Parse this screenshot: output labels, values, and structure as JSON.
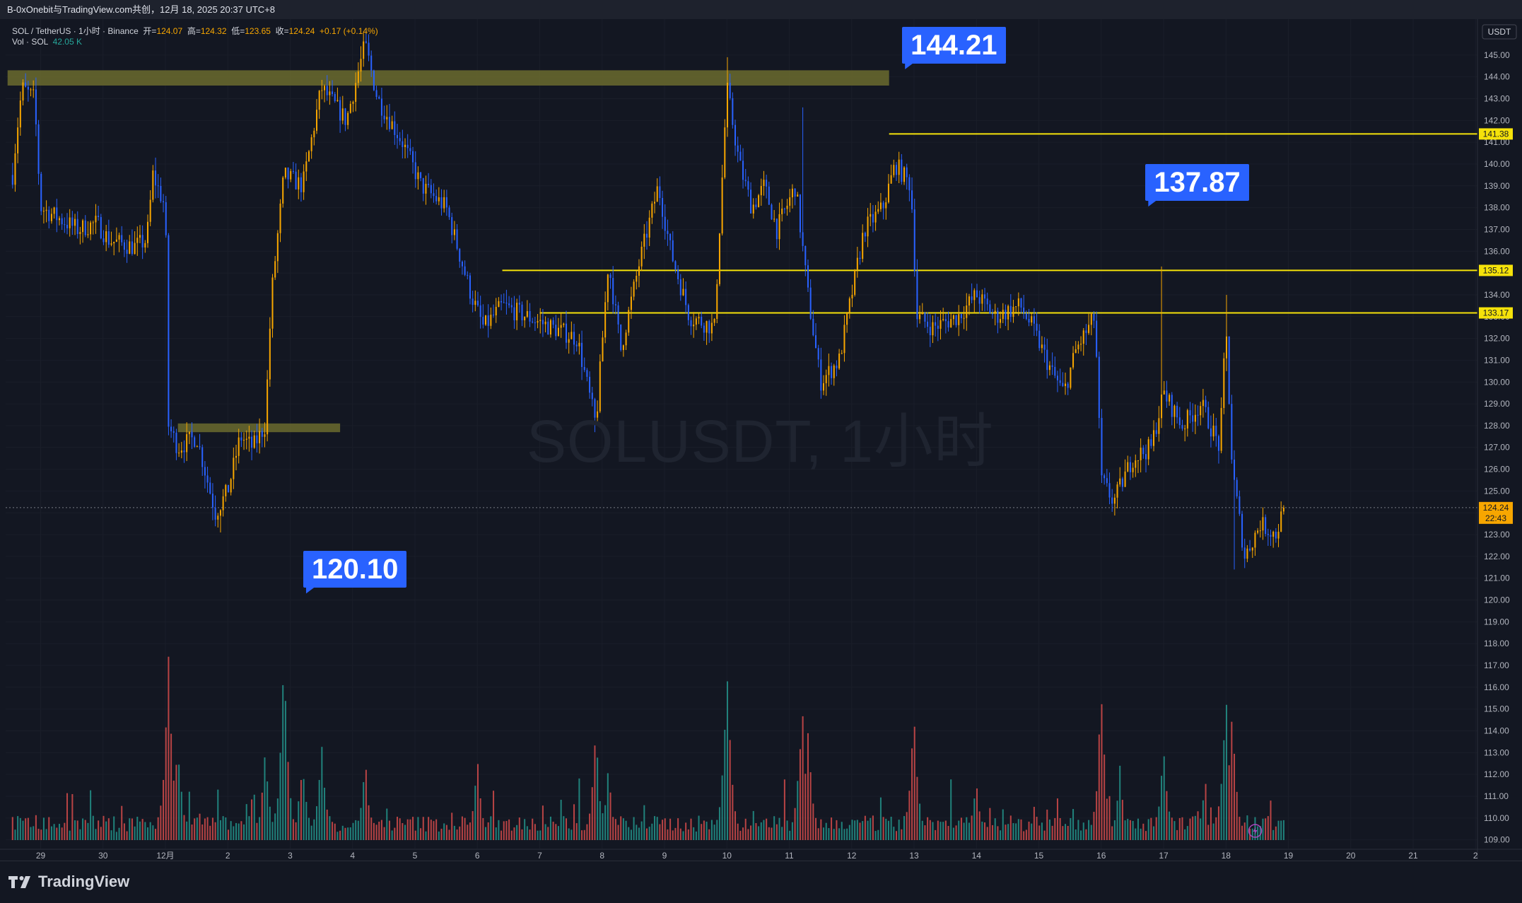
{
  "header": {
    "text": "B-0xOnebit与TradingView.com共创，12月 18, 2025 20:37 UTC+8"
  },
  "legend": {
    "symbol": "SOL / TetherUS · 1小时 · Binance",
    "open_label": "开=",
    "open": "124.07",
    "high_label": "高=",
    "high": "124.32",
    "low_label": "低=",
    "low": "123.65",
    "close_label": "收=",
    "close": "124.24",
    "change": "+0.17 (+0.14%)",
    "vol_label": "Vol · SOL",
    "vol": "42.05 K"
  },
  "watermark": "SOLUSDT, 1小时",
  "footer": {
    "brand": "TradingView"
  },
  "colors": {
    "background": "#131722",
    "up": "#f7a600",
    "down": "#2962ff",
    "vol_up": "#26a69a",
    "vol_down": "#ef5350",
    "level": "#f5e20a",
    "zone": "#6b6b2e"
  },
  "chart_data": {
    "type": "candlestick",
    "currency_label": "USDT",
    "ylim": [
      108.6,
      146.0
    ],
    "yticks": [
      109,
      110,
      111,
      112,
      113,
      114,
      115,
      116,
      117,
      118,
      119,
      120,
      121,
      122,
      123,
      124,
      125,
      126,
      127,
      128,
      129,
      130,
      131,
      132,
      133,
      134,
      135,
      136,
      137,
      138,
      139,
      140,
      141,
      142,
      143,
      144,
      145
    ],
    "xticks": [
      {
        "label": "29",
        "day": 0
      },
      {
        "label": "30",
        "day": 1
      },
      {
        "label": "12月",
        "day": 2
      },
      {
        "label": "2",
        "day": 3
      },
      {
        "label": "3",
        "day": 4
      },
      {
        "label": "4",
        "day": 5
      },
      {
        "label": "5",
        "day": 6
      },
      {
        "label": "6",
        "day": 7
      },
      {
        "label": "7",
        "day": 8
      },
      {
        "label": "8",
        "day": 9
      },
      {
        "label": "9",
        "day": 10
      },
      {
        "label": "10",
        "day": 11
      },
      {
        "label": "11",
        "day": 12
      },
      {
        "label": "12",
        "day": 13
      },
      {
        "label": "13",
        "day": 14
      },
      {
        "label": "14",
        "day": 15
      },
      {
        "label": "15",
        "day": 16
      },
      {
        "label": "16",
        "day": 17
      },
      {
        "label": "17",
        "day": 18
      },
      {
        "label": "18",
        "day": 19
      },
      {
        "label": "19",
        "day": 20
      },
      {
        "label": "20",
        "day": 21
      },
      {
        "label": "21",
        "day": 22
      },
      {
        "label": "2",
        "day": 23
      }
    ],
    "price_path": [
      [
        -0.45,
        139.5
      ],
      [
        -0.4,
        141
      ],
      [
        -0.3,
        143.5
      ],
      [
        -0.1,
        143
      ],
      [
        0,
        138
      ],
      [
        0.3,
        137.5
      ],
      [
        0.6,
        137
      ],
      [
        0.9,
        137.3
      ],
      [
        1.1,
        136.5
      ],
      [
        1.5,
        136.2
      ],
      [
        1.7,
        136.5
      ],
      [
        1.8,
        139.5
      ],
      [
        2.0,
        138
      ],
      [
        2.05,
        128
      ],
      [
        2.2,
        127
      ],
      [
        2.5,
        127.5
      ],
      [
        2.8,
        124
      ],
      [
        3.0,
        125
      ],
      [
        3.2,
        127.5
      ],
      [
        3.4,
        127
      ],
      [
        3.6,
        128
      ],
      [
        3.7,
        134
      ],
      [
        3.9,
        139.5
      ],
      [
        4.2,
        139
      ],
      [
        4.5,
        143.5
      ],
      [
        4.9,
        142
      ],
      [
        5.2,
        145.5
      ],
      [
        5.4,
        143
      ],
      [
        5.8,
        141
      ],
      [
        6.1,
        139
      ],
      [
        6.5,
        138
      ],
      [
        6.9,
        134
      ],
      [
        7.1,
        132.5
      ],
      [
        7.4,
        133.5
      ],
      [
        7.8,
        133
      ],
      [
        8.2,
        132.5
      ],
      [
        8.6,
        132
      ],
      [
        8.9,
        128
      ],
      [
        9.1,
        135.5
      ],
      [
        9.3,
        131.5
      ],
      [
        9.6,
        135.5
      ],
      [
        9.9,
        139
      ],
      [
        10.1,
        136
      ],
      [
        10.4,
        133
      ],
      [
        10.8,
        132.5
      ],
      [
        11.0,
        143.5
      ],
      [
        11.2,
        140
      ],
      [
        11.4,
        138
      ],
      [
        11.6,
        139
      ],
      [
        11.8,
        137
      ],
      [
        12.1,
        139
      ],
      [
        12.3,
        134
      ],
      [
        12.5,
        130
      ],
      [
        12.8,
        131
      ],
      [
        13.0,
        134
      ],
      [
        13.2,
        137
      ],
      [
        13.5,
        138
      ],
      [
        13.7,
        140
      ],
      [
        13.95,
        139
      ],
      [
        14.05,
        133
      ],
      [
        14.3,
        132.5
      ],
      [
        14.7,
        133
      ],
      [
        15.0,
        134
      ],
      [
        15.3,
        133
      ],
      [
        15.7,
        133.5
      ],
      [
        15.9,
        132.5
      ],
      [
        16.2,
        130.5
      ],
      [
        16.4,
        129.5
      ],
      [
        16.6,
        131.5
      ],
      [
        16.9,
        133
      ],
      [
        17.0,
        125.5
      ],
      [
        17.2,
        124.5
      ],
      [
        17.5,
        126.5
      ],
      [
        17.8,
        127
      ],
      [
        18.0,
        129.5
      ],
      [
        18.3,
        128
      ],
      [
        18.6,
        129
      ],
      [
        18.9,
        127
      ],
      [
        19.0,
        132.5
      ],
      [
        19.1,
        126
      ],
      [
        19.3,
        122
      ],
      [
        19.55,
        123.5
      ],
      [
        19.8,
        123
      ],
      [
        19.93,
        124.24
      ]
    ],
    "wicks": [
      {
        "day": 5.2,
        "high": 146.2
      },
      {
        "day": 11.0,
        "high": 144.9
      },
      {
        "day": 19.0,
        "high": 134.0
      },
      {
        "day": 19.12,
        "low": 121.4
      },
      {
        "day": 2.9,
        "low": 123.1
      },
      {
        "day": 17.95,
        "high": 135.3
      },
      {
        "day": 8.9,
        "low": 127.7
      },
      {
        "day": 12.2,
        "high": 142.6
      }
    ],
    "volume_spikes": [
      {
        "day": 2.05,
        "v": 1.0
      },
      {
        "day": 2.2,
        "v": 0.55
      },
      {
        "day": 3.6,
        "v": 0.48
      },
      {
        "day": 3.9,
        "v": 1.0
      },
      {
        "day": 4.2,
        "v": 0.45
      },
      {
        "day": 4.5,
        "v": 0.55
      },
      {
        "day": 5.2,
        "v": 0.45
      },
      {
        "day": 7.0,
        "v": 0.45
      },
      {
        "day": 8.9,
        "v": 0.6
      },
      {
        "day": 9.1,
        "v": 0.38
      },
      {
        "day": 11.0,
        "v": 1.0
      },
      {
        "day": 12.2,
        "v": 0.78
      },
      {
        "day": 12.3,
        "v": 0.62
      },
      {
        "day": 14.0,
        "v": 0.72
      },
      {
        "day": 15.0,
        "v": 0.34
      },
      {
        "day": 16.3,
        "v": 0.22
      },
      {
        "day": 17.0,
        "v": 0.84
      },
      {
        "day": 17.3,
        "v": 0.38
      },
      {
        "day": 18.0,
        "v": 0.52
      },
      {
        "day": 19.0,
        "v": 0.9
      },
      {
        "day": 19.1,
        "v": 0.68
      }
    ],
    "horizontal_lines": [
      {
        "price": 141.38,
        "from_day": 13.6,
        "label": "141.38"
      },
      {
        "price": 135.12,
        "from_day": 7.4,
        "label": "135.12"
      },
      {
        "price": 133.17,
        "from_day": 8.0,
        "label": "133.17"
      }
    ],
    "zones": [
      {
        "from_day": -0.53,
        "to_day": 13.6,
        "low": 143.6,
        "high": 144.3
      },
      {
        "from_day": 2.2,
        "to_day": 4.8,
        "low": 127.7,
        "high": 128.1
      }
    ],
    "callouts": [
      {
        "text": "144.21",
        "day": 13.9,
        "price": 145.45
      },
      {
        "text": "137.87",
        "day": 17.8,
        "price": 139.15
      },
      {
        "text": "120.10",
        "day": 4.3,
        "price": 121.4
      }
    ],
    "current": {
      "price": 124.24,
      "price_label": "124.24",
      "countdown": "22:43"
    }
  }
}
